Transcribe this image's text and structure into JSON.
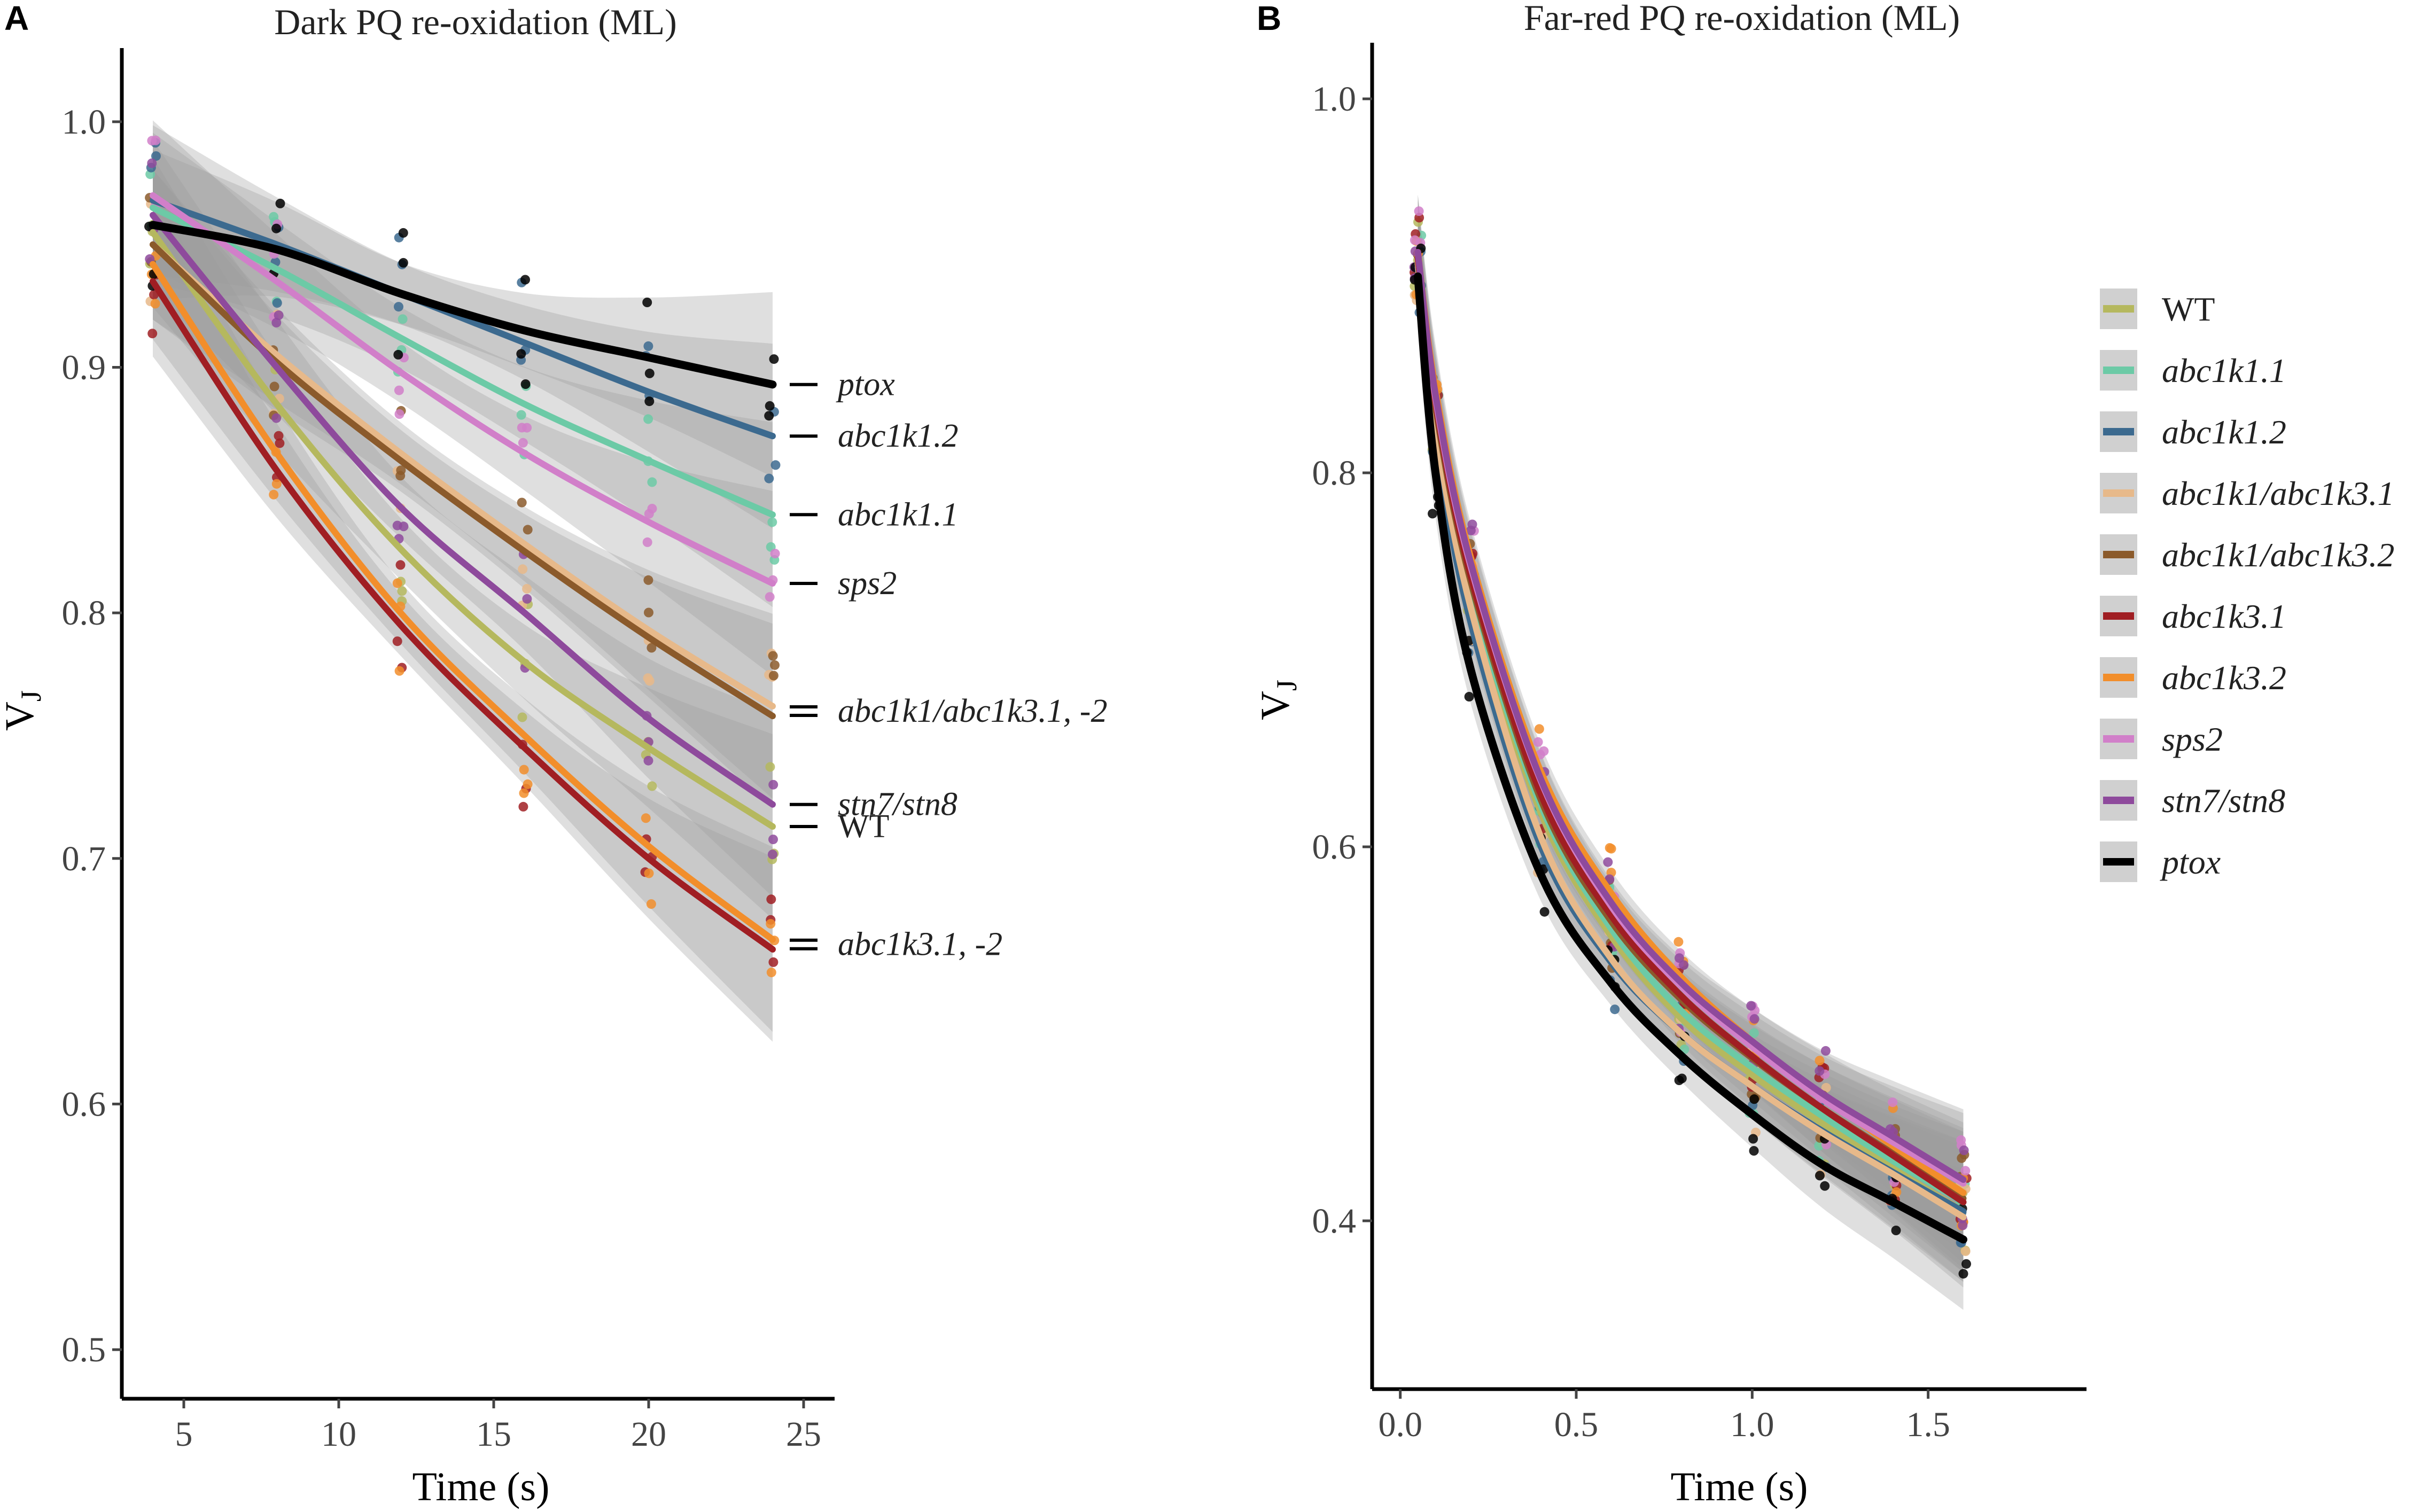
{
  "chart_data": [
    {
      "panel": "A",
      "type": "line",
      "title": "Dark PQ re-oxidation (ML)",
      "xlabel": "Time (s)",
      "ylabel": "V",
      "ylabel_sub": "J",
      "xlim": [
        3,
        26
      ],
      "ylim": [
        0.48,
        1.03
      ],
      "xticks": [
        5,
        10,
        15,
        20,
        25
      ],
      "yticks": [
        0.5,
        0.6,
        0.7,
        0.8,
        0.9,
        1.0
      ],
      "xtick_labels": [
        "5",
        "10",
        "15",
        "20",
        "25"
      ],
      "ytick_labels": [
        "0.5",
        "0.6",
        "0.7",
        "0.8",
        "0.9",
        "1.0"
      ],
      "x": [
        4,
        8,
        12,
        16,
        20,
        24
      ],
      "series": [
        {
          "name": "WT",
          "color": "#b5b85e",
          "values": [
            0.955,
            0.885,
            0.826,
            0.78,
            0.745,
            0.713
          ]
        },
        {
          "name": "abc1k1.1",
          "color": "#6ccaa6",
          "values": [
            0.965,
            0.94,
            0.912,
            0.885,
            0.862,
            0.84
          ]
        },
        {
          "name": "abc1k1.2",
          "color": "#3c6a8f",
          "values": [
            0.968,
            0.95,
            0.93,
            0.91,
            0.89,
            0.872
          ]
        },
        {
          "name": "abc1k1/abc1k3.1",
          "color": "#e7b98a",
          "values": [
            0.95,
            0.905,
            0.865,
            0.828,
            0.793,
            0.762
          ]
        },
        {
          "name": "abc1k1/abc1k3.2",
          "color": "#8b5a2b",
          "values": [
            0.95,
            0.902,
            0.862,
            0.825,
            0.79,
            0.758
          ]
        },
        {
          "name": "abc1k3.1",
          "color": "#a01e23",
          "values": [
            0.935,
            0.858,
            0.795,
            0.745,
            0.7,
            0.663
          ]
        },
        {
          "name": "abc1k3.2",
          "color": "#f28e2b",
          "values": [
            0.942,
            0.865,
            0.8,
            0.75,
            0.705,
            0.667
          ]
        },
        {
          "name": "sps2",
          "color": "#d17fc9",
          "values": [
            0.97,
            0.935,
            0.898,
            0.865,
            0.837,
            0.812
          ]
        },
        {
          "name": "stn7/stn8",
          "color": "#8e4a9c",
          "values": [
            0.962,
            0.9,
            0.843,
            0.8,
            0.757,
            0.722
          ]
        },
        {
          "name": "ptox",
          "color": "#000000",
          "values": [
            0.958,
            0.948,
            0.93,
            0.915,
            0.904,
            0.893
          ]
        }
      ],
      "annotations": [
        {
          "text": "ptox",
          "italic": true
        },
        {
          "text": "abc1k1.2",
          "italic": true
        },
        {
          "text": "abc1k1.1",
          "italic": true
        },
        {
          "text": "sps2",
          "italic": true
        },
        {
          "text": "abc1k1/abc1k3.1, -2",
          "italic": true
        },
        {
          "text": "stn7/stn8",
          "italic": true
        },
        {
          "text": "WT",
          "italic": false
        },
        {
          "text": "abc1k3.1, -2",
          "italic": true
        }
      ]
    },
    {
      "panel": "B",
      "type": "line",
      "title": "Far-red PQ re-oxidation (ML)",
      "xlabel": "Time (s)",
      "ylabel": "V",
      "ylabel_sub": "J",
      "xlim": [
        -0.08,
        1.95
      ],
      "ylim": [
        0.31,
        1.03
      ],
      "xticks": [
        0.0,
        0.5,
        1.0,
        1.5
      ],
      "yticks": [
        0.4,
        0.6,
        0.8,
        1.0
      ],
      "xtick_labels": [
        "0.0",
        "0.5",
        "1.0",
        "1.5"
      ],
      "ytick_labels": [
        "0.4",
        "0.6",
        "0.8",
        "1.0"
      ],
      "x": [
        0.05,
        0.1,
        0.2,
        0.4,
        0.6,
        0.8,
        1.0,
        1.2,
        1.4,
        1.6
      ],
      "series": [
        {
          "name": "WT",
          "color": "#b5b85e",
          "values": [
            0.912,
            0.83,
            0.735,
            0.618,
            0.552,
            0.508,
            0.478,
            0.452,
            0.428,
            0.405
          ]
        },
        {
          "name": "abc1k1.1",
          "color": "#6ccaa6",
          "values": [
            0.912,
            0.832,
            0.738,
            0.622,
            0.556,
            0.512,
            0.482,
            0.456,
            0.432,
            0.41
          ]
        },
        {
          "name": "abc1k1.2",
          "color": "#3c6a8f",
          "values": [
            0.91,
            0.82,
            0.72,
            0.6,
            0.538,
            0.5,
            0.472,
            0.448,
            0.426,
            0.405
          ]
        },
        {
          "name": "abc1k1/abc1k3.1",
          "color": "#e7b98a",
          "values": [
            0.912,
            0.825,
            0.728,
            0.605,
            0.54,
            0.5,
            0.472,
            0.447,
            0.425,
            0.402
          ]
        },
        {
          "name": "abc1k1/abc1k3.2",
          "color": "#8b5a2b",
          "values": [
            0.915,
            0.835,
            0.742,
            0.625,
            0.56,
            0.518,
            0.487,
            0.46,
            0.436,
            0.412
          ]
        },
        {
          "name": "abc1k3.1",
          "color": "#a01e23",
          "values": [
            0.915,
            0.838,
            0.745,
            0.628,
            0.563,
            0.52,
            0.488,
            0.46,
            0.435,
            0.41
          ]
        },
        {
          "name": "abc1k3.2",
          "color": "#f28e2b",
          "values": [
            0.918,
            0.845,
            0.755,
            0.64,
            0.575,
            0.53,
            0.496,
            0.467,
            0.44,
            0.415
          ]
        },
        {
          "name": "sps2",
          "color": "#d17fc9",
          "values": [
            0.918,
            0.84,
            0.75,
            0.635,
            0.568,
            0.525,
            0.493,
            0.465,
            0.442,
            0.42
          ]
        },
        {
          "name": "stn7/stn8",
          "color": "#8e4a9c",
          "values": [
            0.918,
            0.842,
            0.752,
            0.636,
            0.57,
            0.527,
            0.496,
            0.468,
            0.445,
            0.422
          ]
        },
        {
          "name": "ptox",
          "color": "#000000",
          "values": [
            0.905,
            0.8,
            0.695,
            0.585,
            0.527,
            0.488,
            0.457,
            0.43,
            0.41,
            0.39
          ]
        }
      ]
    }
  ],
  "legend": {
    "placement": "right",
    "items": [
      {
        "label": "WT",
        "color": "#b5b85e",
        "italic": false
      },
      {
        "label": "abc1k1.1",
        "color": "#6ccaa6",
        "italic": true
      },
      {
        "label": "abc1k1.2",
        "color": "#3c6a8f",
        "italic": true
      },
      {
        "label": "abc1k1/abc1k3.1",
        "color": "#e7b98a",
        "italic": true
      },
      {
        "label": "abc1k1/abc1k3.2",
        "color": "#8b5a2b",
        "italic": true
      },
      {
        "label": "abc1k3.1",
        "color": "#a01e23",
        "italic": true
      },
      {
        "label": "abc1k3.2",
        "color": "#f28e2b",
        "italic": true
      },
      {
        "label": "sps2",
        "color": "#d17fc9",
        "italic": true
      },
      {
        "label": "stn7/stn8",
        "color": "#8e4a9c",
        "italic": true
      },
      {
        "label": "ptox",
        "color": "#000000",
        "italic": true
      }
    ]
  }
}
